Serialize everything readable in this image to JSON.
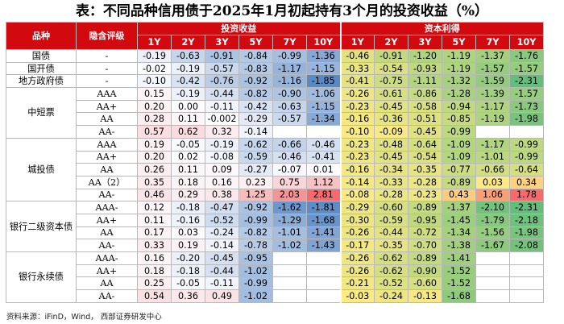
{
  "title": "表：不同品种信用债于2025年1月初起持有3个月的投资收益（%）",
  "headers": {
    "product": "品种",
    "rating": "隐含评级",
    "investment_return": "投资收益",
    "capital_gain": "资本利得",
    "tenors": [
      "1Y",
      "2Y",
      "3Y",
      "5Y",
      "7Y",
      "10Y"
    ]
  },
  "groups": [
    {
      "name": "国债",
      "rows": [
        {
          "rating": "-",
          "inv": [
            "-0.19",
            "-0.63",
            "-0.91",
            "-0.84",
            "-0.99",
            "-1.36"
          ],
          "cap": [
            "-0.46",
            "-0.91",
            "-1.20",
            "-1.19",
            "-1.37",
            "-1.76"
          ]
        }
      ]
    },
    {
      "name": "国开债",
      "rows": [
        {
          "rating": "-",
          "inv": [
            "-0.02",
            "-0.19",
            "-0.57",
            "-0.83",
            "-1.17",
            "-1.15"
          ],
          "cap": [
            "-0.33",
            "-0.54",
            "-0.93",
            "-1.19",
            "-1.57",
            "-1.57"
          ]
        }
      ]
    },
    {
      "name": "地方政府债",
      "rows": [
        {
          "rating": "-",
          "inv": [
            "-0.10",
            "-0.42",
            "-0.76",
            "-0.92",
            "-1.16",
            "-1.85"
          ],
          "cap": [
            "-0.41",
            "-0.75",
            "-1.11",
            "-1.32",
            "-1.59",
            "-2.31"
          ]
        }
      ]
    },
    {
      "name": "中短票",
      "rows": [
        {
          "rating": "AAA",
          "inv": [
            "0.15",
            "-0.19",
            "-0.44",
            "-0.82",
            "-0.90",
            "-1.06"
          ],
          "cap": [
            "-0.26",
            "-0.61",
            "-0.86",
            "-1.28",
            "-1.39",
            "-1.57"
          ]
        },
        {
          "rating": "AA+",
          "inv": [
            "0.20",
            "0.00",
            "-0.11",
            "-0.42",
            "-0.63",
            "-1.15"
          ],
          "cap": [
            "-0.23",
            "-0.45",
            "-0.58",
            "-0.94",
            "-1.17",
            "-1.73"
          ]
        },
        {
          "rating": "AA",
          "inv": [
            "0.28",
            "0.11",
            "-0.002",
            "-0.29",
            "-0.57",
            "-1.34"
          ],
          "cap": [
            "-0.16",
            "-0.36",
            "-0.51",
            "-0.85",
            "-1.19",
            "-1.98"
          ]
        },
        {
          "rating": "AA-",
          "inv": [
            "0.57",
            "0.62",
            "0.32",
            "-0.14",
            "",
            ""
          ],
          "cap": [
            "-0.10",
            "-0.09",
            "-0.45",
            "-0.99",
            "",
            ""
          ]
        }
      ]
    },
    {
      "name": "城投债",
      "rows": [
        {
          "rating": "AAA",
          "inv": [
            "0.19",
            "-0.05",
            "-0.19",
            "-0.62",
            "-0.66",
            "-0.46"
          ],
          "cap": [
            "-0.23",
            "-0.48",
            "-0.64",
            "-1.09",
            "-1.17",
            "-0.99"
          ]
        },
        {
          "rating": "AA+",
          "inv": [
            "0.20",
            "0.02",
            "-0.08",
            "-0.59",
            "-0.46",
            "-0.41"
          ],
          "cap": [
            "-0.23",
            "-0.45",
            "-0.54",
            "-1.09",
            "-1.01",
            "-0.99"
          ]
        },
        {
          "rating": "AA",
          "inv": [
            "0.26",
            "0.11",
            "0.09",
            "-0.27",
            "-0.07",
            "0.01"
          ],
          "cap": [
            "-0.16",
            "-0.34",
            "-0.35",
            "-0.77",
            "-0.66",
            "-0.64"
          ]
        },
        {
          "rating": "AA（2）",
          "inv": [
            "0.35",
            "0.18",
            "0.16",
            "0.23",
            "0.75",
            "1.12"
          ],
          "cap": [
            "-0.14",
            "-0.33",
            "-0.28",
            "-0.89",
            "0.03",
            "0.34"
          ]
        },
        {
          "rating": "AA-",
          "inv": [
            "0.46",
            "0.29",
            "0.38",
            "1.25",
            "2.03",
            "2.81"
          ],
          "cap": [
            "-0.08",
            "-0.28",
            "-0.23",
            "0.43",
            "1.06",
            "1.78"
          ]
        }
      ]
    },
    {
      "name": "银行二级资本债",
      "rows": [
        {
          "rating": "AAA-",
          "inv": [
            "0.12",
            "-0.18",
            "-0.47",
            "-0.92",
            "-1.62",
            "-1.81"
          ],
          "cap": [
            "-0.29",
            "-0.60",
            "-0.89",
            "-1.37",
            "-2.10",
            "-2.31"
          ]
        },
        {
          "rating": "AA+",
          "inv": [
            "0.11",
            "-0.16",
            "-0.52",
            "-0.99",
            "-1.29",
            "-1.68"
          ],
          "cap": [
            "-0.30",
            "-0.59",
            "-0.95",
            "-1.45",
            "-1.79",
            "-2.18"
          ]
        },
        {
          "rating": "AA",
          "inv": [
            "0.17",
            "0.03",
            "-0.24",
            "-0.82",
            "-1.01",
            "-1.41"
          ],
          "cap": [
            "-0.26",
            "-0.44",
            "-0.72",
            "-1.34",
            "-1.56",
            "-1.98"
          ]
        },
        {
          "rating": "AA-",
          "inv": [
            "0.33",
            "0.19",
            "-0.14",
            "-0.78",
            "-1.02",
            "-1.43"
          ],
          "cap": [
            "-0.17",
            "-0.35",
            "-0.70",
            "-1.38",
            "-1.67",
            "-2.08"
          ]
        }
      ]
    },
    {
      "name": "银行永续债",
      "rows": [
        {
          "rating": "AAA-",
          "inv": [
            "0.16",
            "-0.20",
            "-0.45",
            "-0.95",
            "",
            ""
          ],
          "cap": [
            "-0.26",
            "-0.62",
            "-0.89",
            "-1.41",
            "",
            ""
          ]
        },
        {
          "rating": "AA+",
          "inv": [
            "0.18",
            "-0.18",
            "-0.44",
            "-1.02",
            "",
            ""
          ],
          "cap": [
            "-0.26",
            "-0.62",
            "-0.90",
            "-1.52",
            "",
            ""
          ]
        },
        {
          "rating": "AA",
          "inv": [
            "0.25",
            "-0.05",
            "-0.11",
            "-0.99",
            "",
            ""
          ],
          "cap": [
            "-0.21",
            "-0.52",
            "-0.60",
            "-1.52",
            "",
            ""
          ]
        },
        {
          "rating": "AA-",
          "inv": [
            "0.54",
            "0.36",
            "0.49",
            "-1.02",
            "",
            ""
          ],
          "cap": [
            "-0.03",
            "-0.24",
            "-0.13",
            "-1.68",
            "",
            ""
          ]
        }
      ]
    }
  ],
  "source": "资料来源：iFinD，Wind，  西部证券研发中心",
  "colors": {
    "header_bg": "#d20a10",
    "investment_scale": [
      "#5a8ac6",
      "#fcfcff",
      "#f8696b"
    ],
    "capital_scale": [
      "#63be7b",
      "#ffeb84",
      "#f8696b"
    ]
  }
}
